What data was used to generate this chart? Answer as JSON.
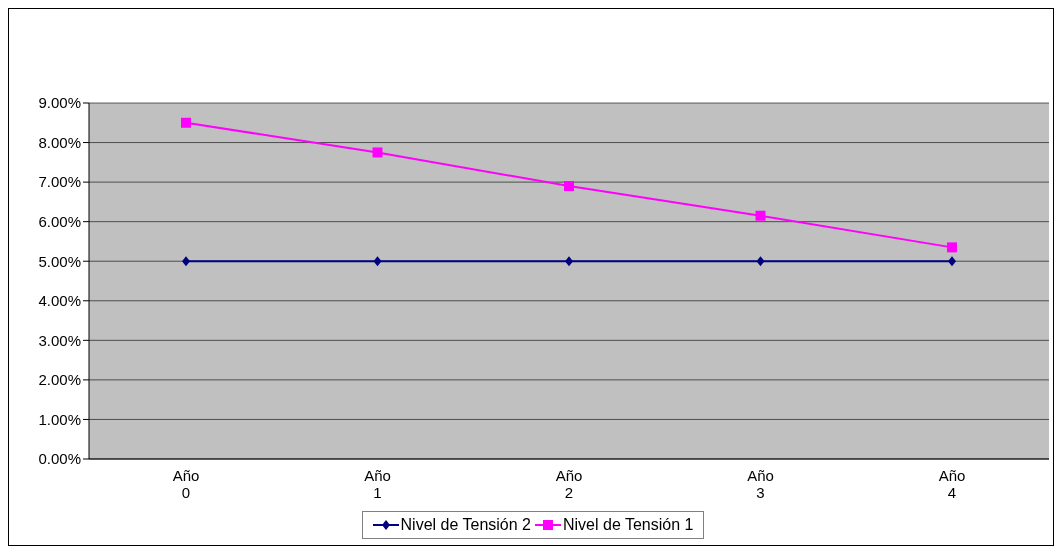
{
  "chart_data": {
    "type": "line",
    "categories": [
      "Año 0",
      "Año 1",
      "Año 2",
      "Año 3",
      "Año 4"
    ],
    "series": [
      {
        "name": "Nivel de Tensión 2",
        "color": "#000080",
        "marker": "diamond",
        "values": [
          5,
          5,
          5,
          5,
          5
        ]
      },
      {
        "name": "Nivel de Tensión 1",
        "color": "#ff00ff",
        "marker": "square",
        "values": [
          8.5,
          7.75,
          6.9,
          6.15,
          5.35
        ]
      }
    ],
    "ylim": [
      0,
      9
    ],
    "yticks": [
      {
        "value": 0,
        "label": "0.00%"
      },
      {
        "value": 1,
        "label": "1.00%"
      },
      {
        "value": 2,
        "label": "2.00%"
      },
      {
        "value": 3,
        "label": "3.00%"
      },
      {
        "value": 4,
        "label": "4.00%"
      },
      {
        "value": 5,
        "label": "5.00%"
      },
      {
        "value": 6,
        "label": "6.00%"
      },
      {
        "value": 7,
        "label": "7.00%"
      },
      {
        "value": 8,
        "label": "8.00%"
      },
      {
        "value": 9,
        "label": "9.00%"
      }
    ],
    "grid": "y",
    "legend": "bottom"
  }
}
